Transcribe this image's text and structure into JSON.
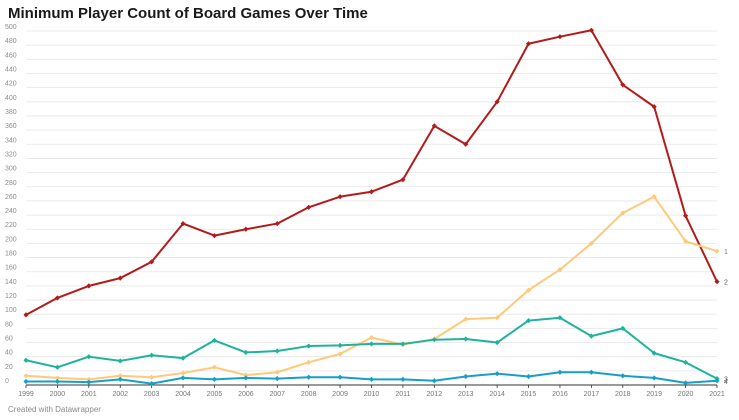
{
  "title": "Minimum Player Count of Board Games Over Time",
  "footer": "Created with Datawrapper",
  "chart_data": {
    "type": "line",
    "title": "Minimum Player Count of Board Games Over Time",
    "xlabel": "",
    "ylabel": "",
    "ylim": [
      0,
      500
    ],
    "yticks": [
      0,
      20,
      40,
      60,
      80,
      100,
      120,
      140,
      160,
      180,
      200,
      220,
      240,
      260,
      280,
      300,
      320,
      340,
      360,
      380,
      400,
      420,
      440,
      460,
      480,
      500
    ],
    "grid": true,
    "x": [
      "1999",
      "2000",
      "2001",
      "2002",
      "2003",
      "2004",
      "2005",
      "2006",
      "2007",
      "2008",
      "2009",
      "2010",
      "2011",
      "2012",
      "2013",
      "2014",
      "2015",
      "2016",
      "2017",
      "2018",
      "2019",
      "2020",
      "2021"
    ],
    "series": [
      {
        "name": "2",
        "color": "#b31b1b",
        "values": [
          99,
          123,
          140,
          151,
          174,
          228,
          211,
          220,
          228,
          251,
          266,
          273,
          290,
          366,
          340,
          400,
          482,
          492,
          501,
          424,
          393,
          239,
          146
        ]
      },
      {
        "name": "1",
        "color": "#fdc97b",
        "values": [
          13,
          10,
          8,
          13,
          11,
          17,
          25,
          14,
          18,
          32,
          44,
          67,
          57,
          65,
          93,
          95,
          134,
          163,
          200,
          243,
          266,
          203,
          189
        ]
      },
      {
        "name": "3",
        "color": "#1fb39a",
        "values": [
          35,
          25,
          40,
          34,
          42,
          38,
          63,
          46,
          48,
          55,
          56,
          58,
          58,
          64,
          65,
          60,
          91,
          95,
          69,
          80,
          45,
          32,
          9
        ]
      },
      {
        "name": "4",
        "color": "#16a0c8",
        "values": [
          5,
          5,
          4,
          8,
          2,
          10,
          8,
          10,
          9,
          11,
          11,
          8,
          8,
          6,
          12,
          16,
          12,
          18,
          18,
          13,
          10,
          3,
          6
        ]
      }
    ]
  }
}
